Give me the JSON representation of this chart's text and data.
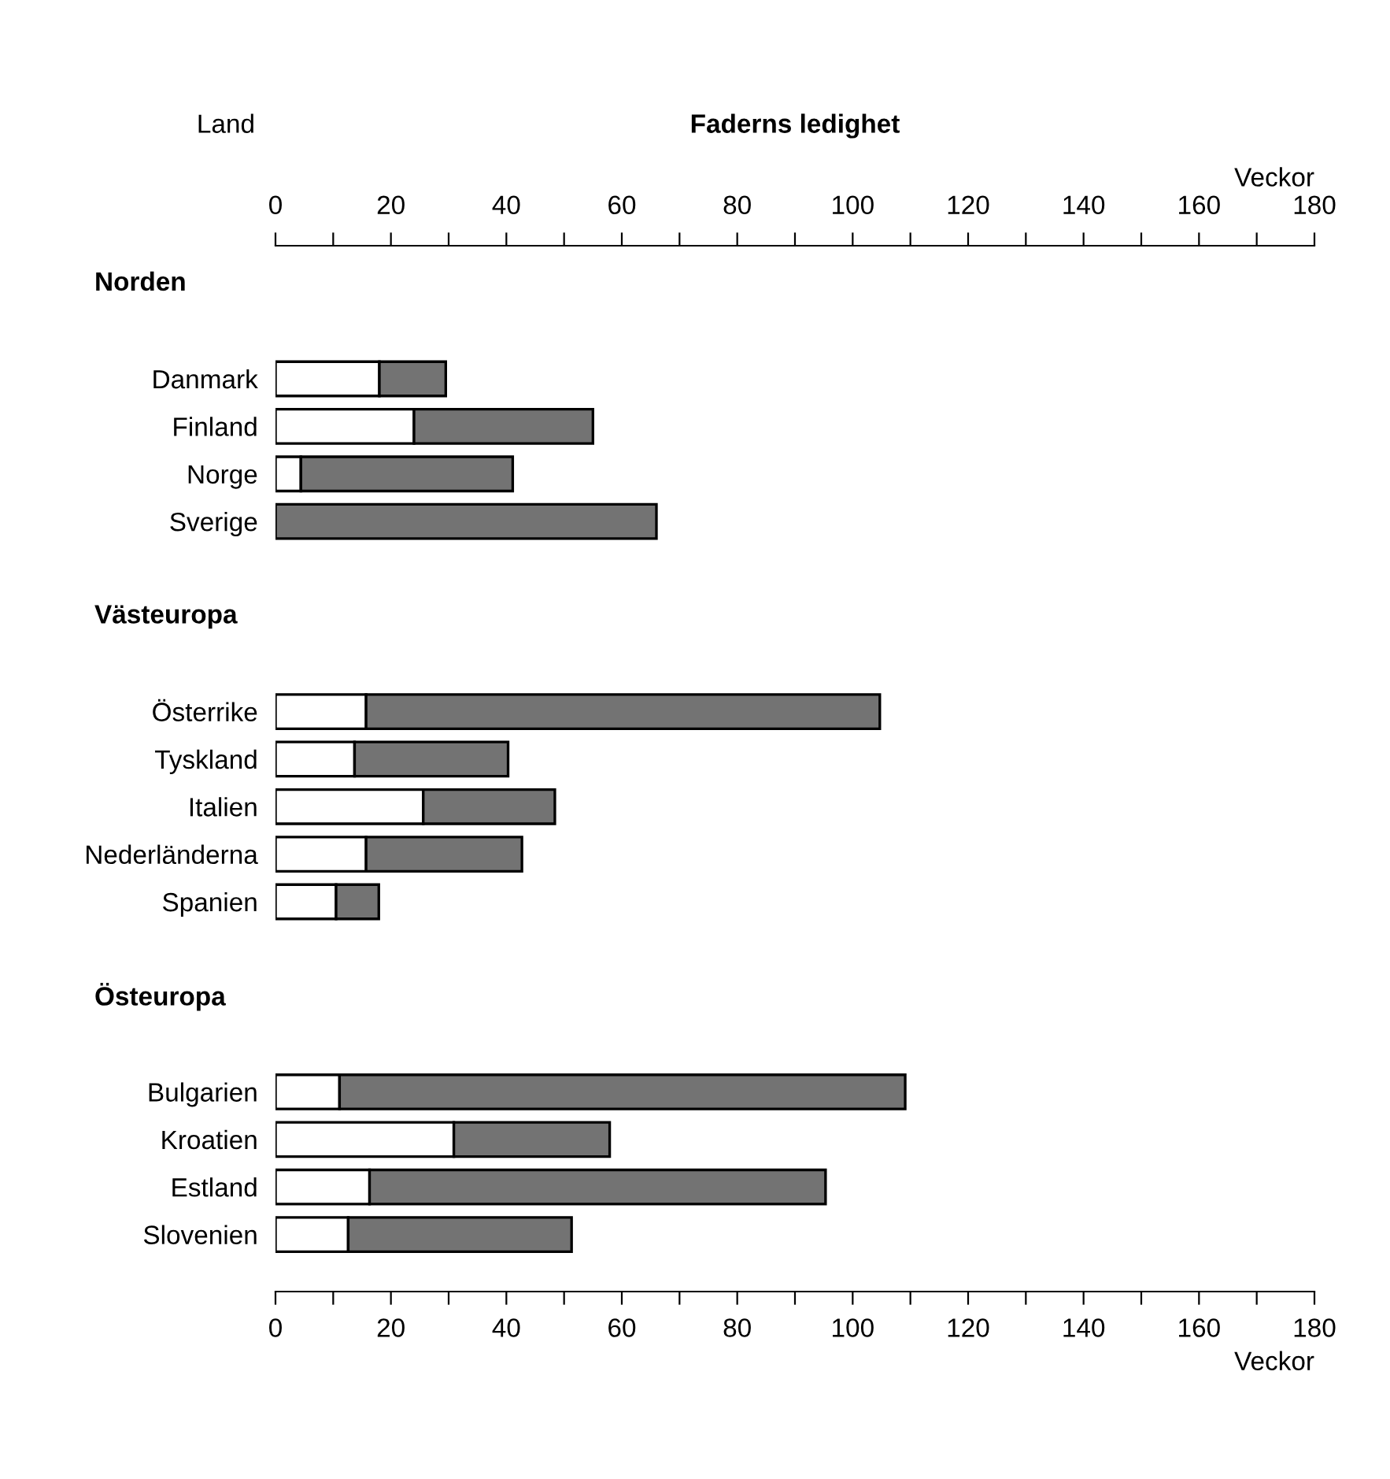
{
  "chart_data": {
    "type": "bar",
    "orientation": "horizontal",
    "stacked": true,
    "title": "Faderns ledighet",
    "annotations": [
      "Land",
      "Norden",
      "Västeuropa",
      "Östeuropa"
    ],
    "xlabel": "Veckor",
    "x2label": "Veckor",
    "categories": [
      null,
      null,
      "Danmark",
      "Finland",
      "Norge",
      "Sverige",
      null,
      null,
      null,
      "Österrike",
      "Tyskland",
      "Italien",
      "Nederländerna",
      "Spanien",
      null,
      null,
      null,
      "Bulgarien",
      "Kroatien",
      "Estland",
      "Slovenien"
    ],
    "series": [
      {
        "color": "#ffffff",
        "values": [
          null,
          null,
          18,
          24,
          4.4,
          0,
          null,
          null,
          null,
          15.7,
          13.7,
          25.6,
          15.7,
          10.5,
          null,
          null,
          null,
          11.1,
          30.9,
          16.3,
          12.6
        ]
      },
      {
        "color": "#737373",
        "values": [
          null,
          null,
          11.5,
          31,
          36.7,
          66,
          null,
          null,
          null,
          89,
          26.6,
          22.8,
          27,
          7.4,
          null,
          null,
          null,
          98,
          27,
          79,
          38.7
        ]
      }
    ],
    "xlim": [
      0,
      180
    ],
    "xticks": [
      0,
      {
        "value": 10,
        "label": null
      },
      20,
      {
        "value": 30,
        "label": null
      },
      40,
      {
        "value": 50,
        "label": null
      },
      60,
      {
        "value": 70,
        "label": null
      },
      80,
      {
        "value": 90,
        "label": null
      },
      100,
      {
        "value": 110,
        "label": null
      },
      120,
      {
        "value": 130,
        "label": null
      },
      140,
      {
        "value": 150,
        "label": null
      },
      160,
      {
        "value": 170,
        "label": null
      },
      180
    ],
    "x2lim": [
      0,
      180
    ],
    "x2ticks": [
      0,
      {
        "value": 10,
        "label": null
      },
      20,
      {
        "value": 30,
        "label": null
      },
      40,
      {
        "value": 50,
        "label": null
      },
      60,
      {
        "value": 70,
        "label": null
      },
      80,
      {
        "value": 90,
        "label": null
      },
      100,
      {
        "value": 110,
        "label": null
      },
      120,
      {
        "value": 130,
        "label": null
      },
      140,
      {
        "value": 150,
        "label": null
      },
      160,
      {
        "value": 170,
        "label": null
      },
      180
    ],
    "grid": false,
    "legend": false
  }
}
